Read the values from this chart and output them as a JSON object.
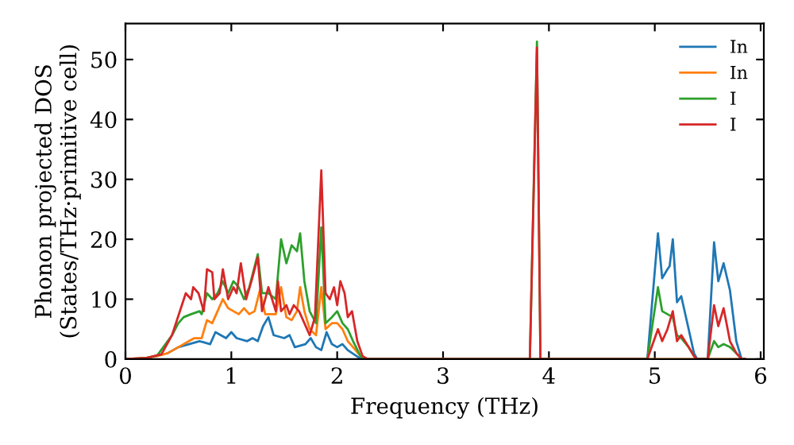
{
  "chart_data": {
    "type": "line",
    "xlabel": "Frequency (THz)",
    "ylabel": "Phonon projected DOS\n(States/THz·primitive cell)",
    "xlim": [
      0,
      6.03
    ],
    "ylim": [
      0,
      56
    ],
    "xticks": [
      0,
      1,
      2,
      3,
      4,
      5,
      6
    ],
    "yticks": [
      0,
      10,
      20,
      30,
      40,
      50
    ],
    "legend": "top right",
    "grid": false,
    "marker": "none",
    "line_style": "solid",
    "series": [
      {
        "name": "In",
        "color": "#1f77b4",
        "x": [
          0.4,
          0.5,
          0.6,
          0.7,
          0.8,
          0.85,
          0.95,
          1.0,
          1.05,
          1.15,
          1.2,
          1.25,
          1.3,
          1.35,
          1.4,
          1.5,
          1.55,
          1.6,
          1.7,
          1.75,
          1.8,
          1.85,
          1.9,
          1.95,
          2.0,
          2.05,
          2.1,
          2.2,
          2.3,
          3.82,
          3.887,
          3.92,
          4.93,
          5.03,
          5.07,
          5.12,
          5.14,
          5.17,
          5.21,
          5.25,
          5.32,
          5.37,
          5.4,
          5.5,
          5.56,
          5.6,
          5.65,
          5.71,
          5.77,
          5.82,
          5.85
        ],
        "values": [
          1,
          2,
          2.5,
          3,
          2.5,
          4.5,
          3.5,
          4.5,
          3.5,
          3,
          3.5,
          3,
          5.5,
          7,
          4,
          3.5,
          4,
          2,
          2.5,
          3.5,
          2,
          1.5,
          4.5,
          2.5,
          2,
          2.5,
          1.5,
          0.3,
          0,
          0,
          0,
          0,
          0,
          21,
          13.5,
          15,
          15.5,
          20,
          9.5,
          10.5,
          5,
          1,
          0,
          0,
          19.5,
          13,
          16,
          11.5,
          3,
          0,
          0
        ]
      },
      {
        "name": "In",
        "color": "#ff7f0e",
        "x": [
          0,
          0.2,
          0.3,
          0.4,
          0.5,
          0.6,
          0.65,
          0.72,
          0.77,
          0.82,
          0.87,
          0.92,
          0.97,
          1.02,
          1.07,
          1.12,
          1.17,
          1.22,
          1.27,
          1.32,
          1.37,
          1.42,
          1.47,
          1.52,
          1.57,
          1.62,
          1.65,
          1.69,
          1.74,
          1.8,
          1.85,
          1.89,
          1.95,
          2.0,
          2.05,
          2.1,
          2.15,
          2.22,
          2.28,
          5.85
        ],
        "values": [
          0,
          0.2,
          0.5,
          1,
          2,
          3,
          3.5,
          3.5,
          6.5,
          6,
          8,
          10,
          8.5,
          8,
          7.5,
          8.5,
          7.5,
          8,
          11.5,
          7.5,
          7.5,
          7.5,
          12,
          7,
          6.5,
          8,
          12,
          8,
          5,
          4,
          12,
          5,
          6,
          6,
          5,
          3,
          2,
          0.5,
          0,
          0
        ]
      },
      {
        "name": "I",
        "color": "#2ca02c",
        "x": [
          0,
          0.2,
          0.3,
          0.44,
          0.5,
          0.55,
          0.62,
          0.7,
          0.72,
          0.77,
          0.82,
          0.87,
          0.92,
          0.97,
          1.02,
          1.07,
          1.12,
          1.17,
          1.25,
          1.29,
          1.35,
          1.42,
          1.47,
          1.52,
          1.57,
          1.62,
          1.65,
          1.69,
          1.74,
          1.8,
          1.85,
          1.89,
          1.95,
          2.0,
          2.05,
          2.1,
          2.15,
          2.22,
          2.28,
          3.82,
          3.887,
          3.92,
          4.93,
          5.03,
          5.07,
          5.12,
          5.17,
          5.21,
          5.25,
          5.32,
          5.37,
          5.4,
          5.5,
          5.56,
          5.6,
          5.65,
          5.71,
          5.77,
          5.82,
          5.85
        ],
        "values": [
          0,
          0.2,
          0.6,
          4,
          6,
          7,
          7.5,
          8,
          7.5,
          11,
          10,
          11,
          13,
          11,
          13,
          12,
          10,
          12,
          17.5,
          11,
          11,
          10,
          20,
          16,
          19,
          18,
          21,
          13,
          8,
          6,
          22,
          6,
          7,
          8,
          6,
          5,
          3,
          0.5,
          0,
          0,
          53,
          0,
          0,
          12,
          8,
          7.5,
          7,
          4,
          3.5,
          2,
          0.5,
          0,
          0,
          3,
          2,
          2.5,
          2,
          1,
          0,
          0
        ]
      },
      {
        "name": "I",
        "color": "#d62728",
        "x": [
          0,
          0.2,
          0.34,
          0.44,
          0.57,
          0.62,
          0.64,
          0.69,
          0.74,
          0.77,
          0.82,
          0.84,
          0.89,
          0.92,
          0.97,
          1.02,
          1.05,
          1.09,
          1.14,
          1.19,
          1.25,
          1.29,
          1.35,
          1.42,
          1.44,
          1.47,
          1.52,
          1.55,
          1.59,
          1.64,
          1.69,
          1.74,
          1.79,
          1.85,
          1.89,
          1.93,
          1.97,
          2.0,
          2.03,
          2.07,
          2.1,
          2.14,
          2.19,
          2.24,
          2.29,
          3.82,
          3.887,
          3.92,
          4.93,
          5.03,
          5.07,
          5.12,
          5.17,
          5.21,
          5.25,
          5.32,
          5.37,
          5.4,
          5.5,
          5.56,
          5.6,
          5.65,
          5.71,
          5.77,
          5.82,
          5.85
        ],
        "values": [
          0,
          0.2,
          0.8,
          4,
          11,
          10,
          12,
          11,
          8,
          15,
          14.5,
          10,
          11,
          15,
          10,
          12,
          11,
          16,
          10,
          13,
          17,
          8,
          12,
          8,
          13,
          8,
          9,
          7.5,
          9,
          8,
          6,
          4,
          7,
          31.5,
          11,
          10,
          12,
          9,
          13,
          11,
          7,
          8,
          3,
          0.5,
          0,
          0,
          52,
          0,
          0,
          5,
          3,
          5,
          8,
          3,
          4,
          2,
          0.5,
          0,
          0,
          9,
          5.5,
          8.5,
          3,
          1,
          0,
          0
        ]
      }
    ]
  }
}
